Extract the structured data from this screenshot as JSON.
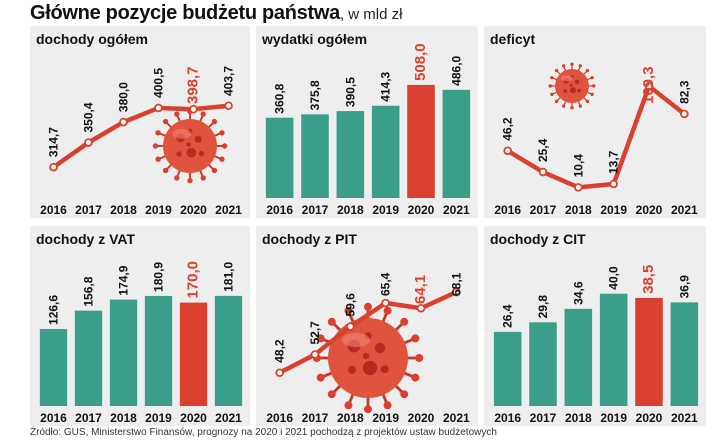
{
  "header": {
    "title": "Główne pozycje budżetu państwa",
    "unit": ", w mld zł"
  },
  "source": "Źródło: GUS, Ministerstwo Finansów, prognozy na 2020 i 2021 pochodzą z projektów ustaw budżetowych",
  "colors": {
    "green": "#3a9e8a",
    "red": "#d9402f",
    "panel_bg": "#eeeeee",
    "text": "#111111"
  },
  "chart_data": [
    {
      "type": "line",
      "title": "dochody ogółem",
      "categories": [
        "2016",
        "2017",
        "2018",
        "2019",
        "2020",
        "2021"
      ],
      "values": [
        314.7,
        350.4,
        380.0,
        400.5,
        398.7,
        403.7
      ],
      "labels": [
        "314,7",
        "350,4",
        "380,0",
        "400,5",
        "398,7",
        "403,7"
      ],
      "highlight_index": 4,
      "ylim": [
        270,
        470
      ],
      "virus": true
    },
    {
      "type": "bar",
      "title": "wydatki ogółem",
      "categories": [
        "2016",
        "2017",
        "2018",
        "2019",
        "2020",
        "2021"
      ],
      "values": [
        360.8,
        375.8,
        390.5,
        414.3,
        508.0,
        486.0
      ],
      "labels": [
        "360,8",
        "375,8",
        "390,5",
        "414,3",
        "508,0",
        "486,0"
      ],
      "highlight_index": 4,
      "ylim": [
        0,
        620
      ]
    },
    {
      "type": "line",
      "title": "deficyt",
      "categories": [
        "2016",
        "2017",
        "2018",
        "2019",
        "2020",
        "2021"
      ],
      "values": [
        46.2,
        25.4,
        10.4,
        13.7,
        109.3,
        82.3
      ],
      "labels": [
        "46,2",
        "25,4",
        "10,4",
        "13,7",
        "109,3",
        "82,3"
      ],
      "highlight_index": 4,
      "ylim": [
        0,
        135
      ],
      "virus": true
    },
    {
      "type": "bar",
      "title": "dochody z VAT",
      "categories": [
        "2016",
        "2017",
        "2018",
        "2019",
        "2020",
        "2021"
      ],
      "values": [
        126.6,
        156.8,
        174.9,
        180.9,
        170.0,
        181.0
      ],
      "labels": [
        "126,6",
        "156,8",
        "174,9",
        "180,9",
        "170,0",
        "181,0"
      ],
      "highlight_index": 4,
      "ylim": [
        0,
        240
      ]
    },
    {
      "type": "line",
      "title": "dochody z PIT",
      "categories": [
        "2016",
        "2017",
        "2018",
        "2019",
        "2020",
        "2021"
      ],
      "values": [
        48.2,
        52.7,
        59.6,
        65.4,
        64.1,
        68.1
      ],
      "labels": [
        "48,2",
        "52,7",
        "59,6",
        "65,4",
        "64,1",
        "68,1"
      ],
      "highlight_index": 4,
      "ylim": [
        40,
        76
      ],
      "virus": true
    },
    {
      "type": "bar",
      "title": "dochody z CIT",
      "categories": [
        "2016",
        "2017",
        "2018",
        "2019",
        "2020",
        "2021"
      ],
      "values": [
        26.4,
        29.8,
        34.6,
        40.0,
        38.5,
        36.9
      ],
      "labels": [
        "26,4",
        "29,8",
        "34,6",
        "40,0",
        "38,5",
        "36,9"
      ],
      "highlight_index": 4,
      "ylim": [
        0,
        52
      ]
    }
  ]
}
